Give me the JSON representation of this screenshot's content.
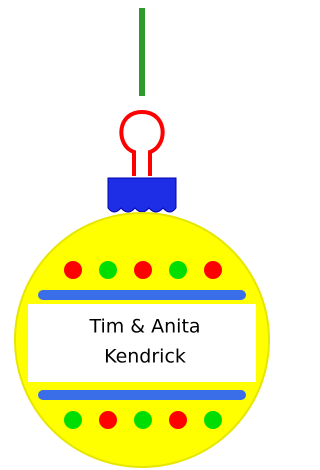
{
  "ornament": {
    "line1": "Tim & Anita",
    "line2": "Kendrick"
  }
}
